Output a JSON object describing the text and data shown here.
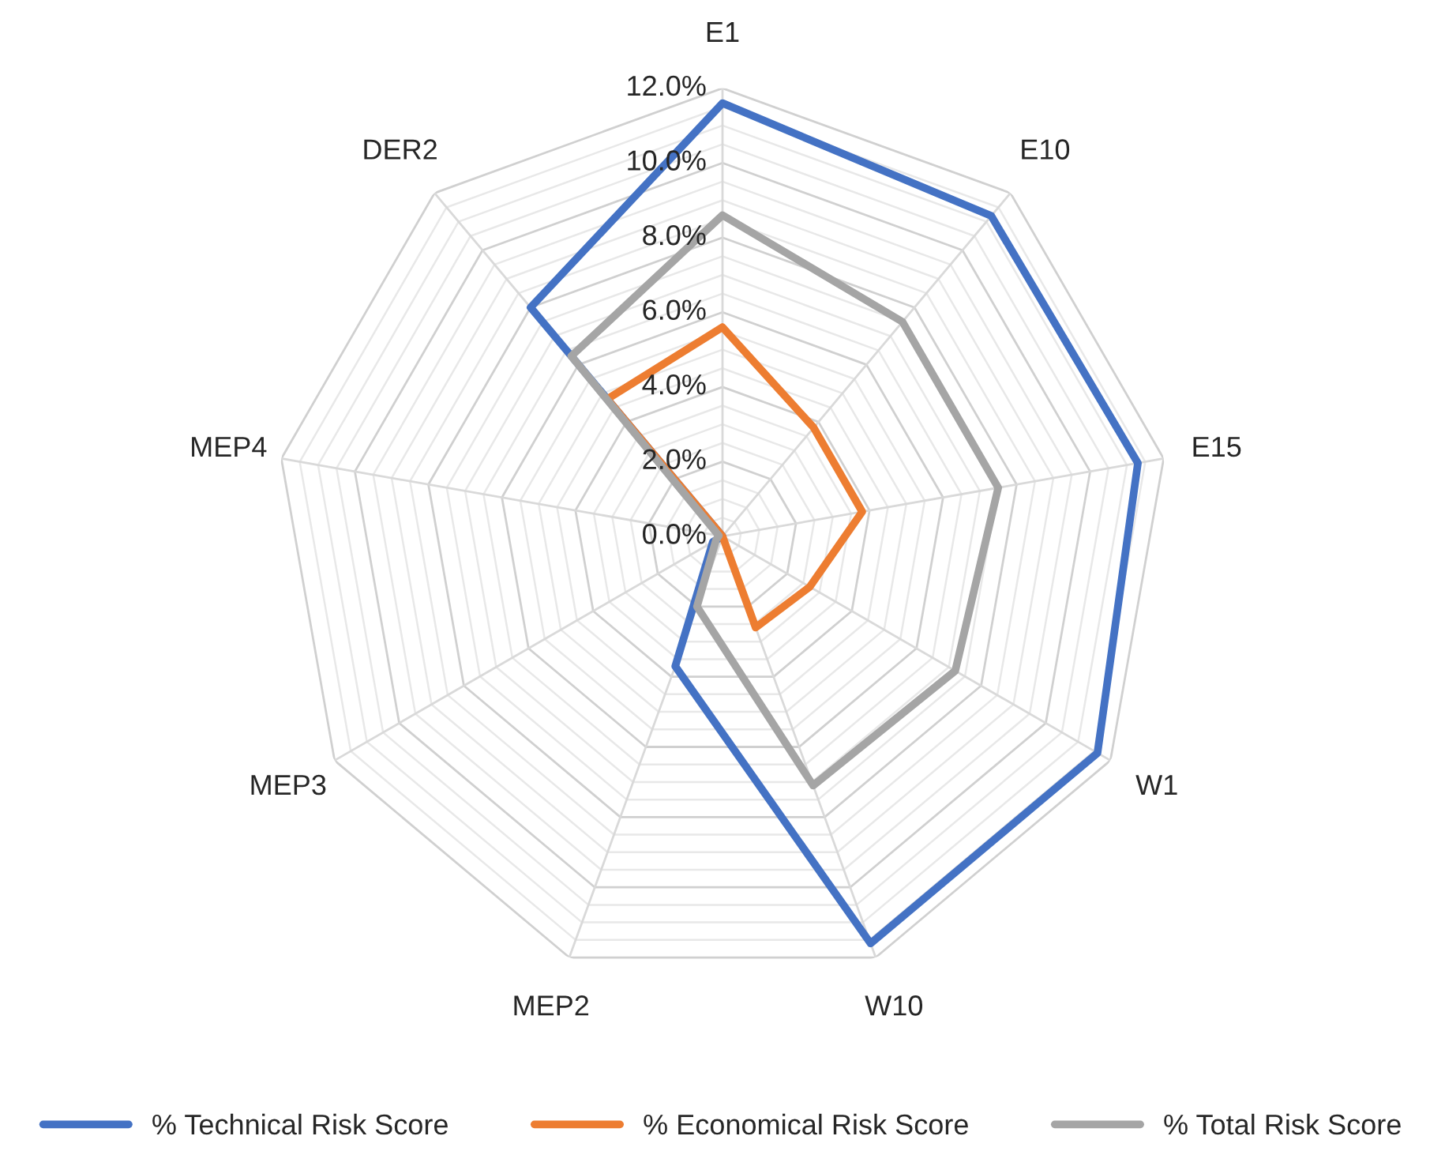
{
  "chart_data": {
    "type": "radar",
    "categories": [
      "E1",
      "E10",
      "E15",
      "W1",
      "W10",
      "MEP2",
      "MEP3",
      "MEP4",
      "DER2"
    ],
    "ylim": [
      0,
      12
    ],
    "yticks": [
      {
        "value": 0,
        "label": "0.0%"
      },
      {
        "value": 2,
        "label": "2.0%"
      },
      {
        "value": 4,
        "label": "4.0%"
      },
      {
        "value": 6,
        "label": "6.0%"
      },
      {
        "value": 8,
        "label": "8.0%"
      },
      {
        "value": 10,
        "label": "10.0%"
      },
      {
        "value": 12,
        "label": "12.0%"
      }
    ],
    "series": [
      {
        "name": "% Technical Risk Score",
        "color": "#4472c4",
        "values": [
          11.6,
          11.2,
          11.3,
          11.6,
          11.6,
          3.7,
          0.3,
          0,
          8.0
        ]
      },
      {
        "name": "% Economical Risk Score",
        "color": "#ed7d31",
        "values": [
          5.6,
          3.8,
          3.8,
          2.7,
          2.6,
          0,
          0,
          0,
          4.8
        ]
      },
      {
        "name": "% Total Risk Score",
        "color": "#a5a5a5",
        "values": [
          8.6,
          7.5,
          7.5,
          7.2,
          7.1,
          2.0,
          0.2,
          0.1,
          6.3
        ]
      }
    ],
    "grid": true,
    "legend": "bottom",
    "line_style": "solid",
    "marker": "none"
  }
}
